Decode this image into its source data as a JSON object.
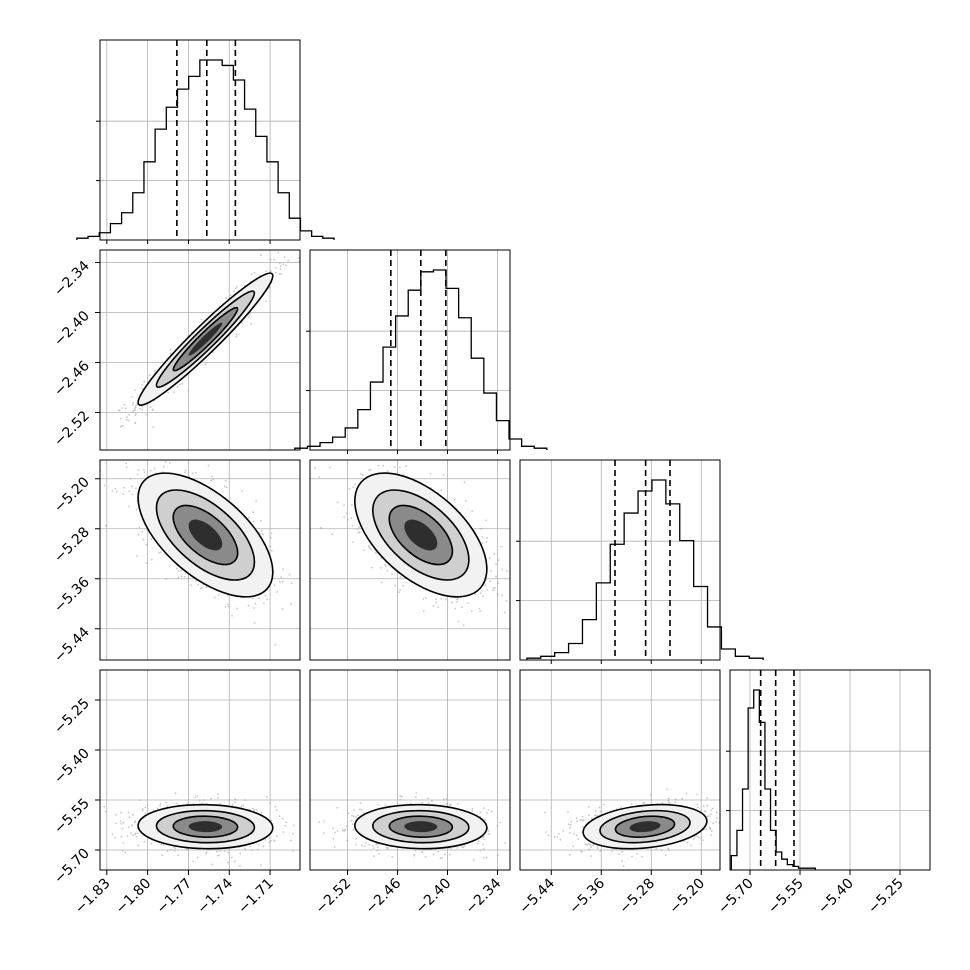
{
  "chart_data": {
    "type": "corner",
    "grid": true,
    "parameters": [
      {
        "range": [
          -1.835,
          -1.688
        ],
        "center": -1.7575,
        "sd": 0.0225,
        "quantiles": [
          -1.7785,
          -1.7565,
          -1.7355
        ],
        "ticks": [
          -1.83,
          -1.8,
          -1.77,
          -1.74,
          -1.71
        ],
        "tick_labels": [
          "−1.83",
          "−1.80",
          "−1.77",
          "−1.74",
          "−1.71"
        ]
      },
      {
        "range": [
          -2.565,
          -2.325
        ],
        "center": -2.432,
        "sd": 0.036,
        "quantiles": [
          -2.468,
          -2.432,
          -2.402
        ],
        "ticks": [
          -2.52,
          -2.46,
          -2.4,
          -2.34
        ],
        "tick_labels": [
          "−2.52",
          "−2.46",
          "−2.40",
          "−2.34"
        ]
      },
      {
        "range": [
          -5.49,
          -5.17
        ],
        "center": -5.29,
        "sd": 0.045,
        "quantiles": [
          -5.338,
          -5.289,
          -5.25
        ],
        "ticks": [
          -5.44,
          -5.36,
          -5.28,
          -5.2
        ],
        "tick_labels": [
          "−5.44",
          "−5.36",
          "−5.28",
          "−5.20"
        ]
      },
      {
        "range": [
          -5.76,
          -5.16
        ],
        "center": -5.63,
        "sd": 0.03,
        "quantiles": [
          -5.668,
          -5.623,
          -5.568
        ],
        "ticks": [
          -5.7,
          -5.55,
          -5.4,
          -5.25
        ],
        "tick_labels": [
          "−5.70",
          "−5.55",
          "−5.40",
          "−5.25"
        ]
      }
    ],
    "histograms": [
      [
        1,
        2,
        4,
        9,
        15,
        26,
        43,
        61,
        73,
        83,
        90,
        99,
        99,
        96,
        88,
        72,
        57,
        43,
        26,
        12,
        5,
        2,
        1
      ],
      [
        1,
        2,
        4,
        7,
        12,
        22,
        37,
        56,
        73,
        87,
        97,
        98,
        88,
        72,
        50,
        31,
        16,
        6,
        2,
        1
      ],
      [
        1,
        2,
        4,
        9,
        22,
        42,
        63,
        80,
        92,
        98,
        85,
        65,
        40,
        18,
        6,
        2,
        1
      ],
      [
        8,
        22,
        45,
        90,
        100,
        82,
        45,
        22,
        10,
        6,
        3,
        2,
        1,
        1,
        1
      ]
    ],
    "correlations": {
      "1-0": 0.96,
      "2-0": -0.6,
      "2-1": -0.55,
      "3-0": -0.05,
      "3-1": -0.05,
      "3-2": 0.25
    }
  }
}
